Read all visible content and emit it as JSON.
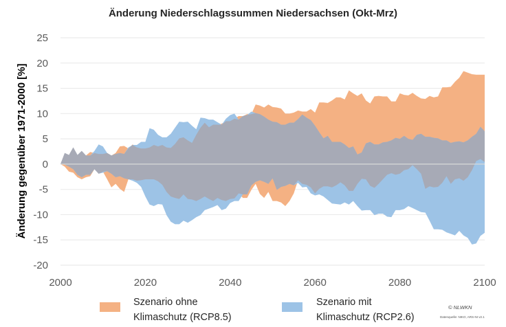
{
  "chart_data": {
    "type": "area",
    "title": "Änderung Niederschlagssummen Niedersachsen (Okt-Mrz)",
    "xlabel": "",
    "ylabel": "Änderung gegenüber 1971-2000 [%]",
    "xlim": [
      2000,
      2100
    ],
    "ylim": [
      -20,
      25
    ],
    "xticks": [
      "2000",
      "2020",
      "2040",
      "2060",
      "2080",
      "2100"
    ],
    "yticks": [
      "25",
      "20",
      "15",
      "10",
      "5",
      "0",
      "-5",
      "-10",
      "-15",
      "-20"
    ],
    "grid": true,
    "legend_position": "bottom",
    "x_start": 2000,
    "x_step": 1,
    "series": [
      {
        "name": "Szenario ohne Klimaschutz (RCP8.5)",
        "color": "#F4B183",
        "upper": [
          0,
          2.2,
          1.8,
          3.3,
          1.8,
          2.6,
          1.7,
          2.4,
          2.2,
          2.0,
          2.0,
          2.2,
          1.7,
          2.2,
          3.5,
          3.6,
          3.1,
          3.9,
          3.3,
          3.1,
          3.1,
          3.3,
          3.8,
          3.5,
          3.8,
          3.3,
          3.2,
          4.0,
          5.1,
          5.3,
          4.7,
          4.2,
          5.8,
          7.2,
          8.2,
          7.3,
          7.8,
          7.8,
          8.0,
          8.5,
          8.5,
          9.0,
          9.5,
          9.5,
          9.9,
          9.9,
          11.8,
          11.6,
          11.2,
          11.8,
          11.3,
          11.2,
          11.0,
          10.0,
          10.0,
          10.2,
          10.6,
          10.4,
          10.4,
          10.9,
          10.2,
          12.2,
          12.2,
          12.1,
          12.6,
          13.2,
          13.2,
          12.8,
          14.6,
          14.0,
          13.5,
          14.0,
          12.6,
          12.0,
          13.4,
          13.5,
          13.4,
          13.4,
          12.4,
          12.4,
          14.0,
          13.7,
          13.6,
          14.1,
          13.5,
          13.0,
          12.9,
          13.5,
          13.2,
          13.4,
          15.2,
          15.2,
          15.3,
          16.3,
          17.1,
          18.4,
          18.1,
          17.8,
          17.7,
          17.7,
          17.7
        ],
        "lower": [
          0,
          -0.5,
          -1.5,
          -1.7,
          -2.6,
          -3.0,
          -2.6,
          -2.4,
          -1.0,
          -1.9,
          -1.5,
          -3.0,
          -4.6,
          -3.9,
          -4.9,
          -5.5,
          -3.0,
          -3.0,
          -3.3,
          -3.2,
          -3.0,
          -3.0,
          -3.0,
          -3.4,
          -4.1,
          -5.5,
          -6.4,
          -6.7,
          -6.9,
          -6.0,
          -6.9,
          -7.0,
          -7.3,
          -6.9,
          -6.4,
          -6.9,
          -7.3,
          -6.7,
          -7.1,
          -7.3,
          -6.9,
          -6.8,
          -5.8,
          -6.7,
          -6.7,
          -5.1,
          -3.9,
          -5.9,
          -6.7,
          -5.5,
          -7.3,
          -7.3,
          -7.6,
          -8.3,
          -7.3,
          -5.8,
          -3.2,
          -3.9,
          -4.1,
          -4.6,
          -5.8,
          -4.9,
          -4.4,
          -4.4,
          -4.6,
          -4.2,
          -3.6,
          -4.2,
          -5.3,
          -5.3,
          -3.9,
          -2.9,
          -3.0,
          -4.3,
          -4.7,
          -3.9,
          -3.0,
          -2.1,
          -1.8,
          -2.1,
          -1.9,
          -1.2,
          -1.0,
          -0.2,
          -1.0,
          -1.9,
          -4.9,
          -4.4,
          -4.6,
          -4.5,
          -3.7,
          -2.4,
          -3.9,
          -3.0,
          -2.8,
          -3.3,
          -2.6,
          -1.2,
          0.6,
          1.0,
          0.4
        ]
      },
      {
        "name": "Szenario mit Klimaschutz (RCP2.6)",
        "color": "#9DC3E6",
        "upper": [
          0,
          2.2,
          1.8,
          3.3,
          1.8,
          2.6,
          1.7,
          1.7,
          2.6,
          3.9,
          3.5,
          2.2,
          1.7,
          2.0,
          2.2,
          2.0,
          3.3,
          3.8,
          3.8,
          4.4,
          4.4,
          7.1,
          6.8,
          5.8,
          5.3,
          5.3,
          6.0,
          7.2,
          8.4,
          8.3,
          8.4,
          7.6,
          6.9,
          9.2,
          9.1,
          8.8,
          8.8,
          8.3,
          7.8,
          9.0,
          9.7,
          10.0,
          8.8,
          9.5,
          9.7,
          10.4,
          10.1,
          9.9,
          9.4,
          8.8,
          8.4,
          8.3,
          7.8,
          7.8,
          8.2,
          8.2,
          8.9,
          9.8,
          9.2,
          8.7,
          7.6,
          6.3,
          5.1,
          5.6,
          4.4,
          4.4,
          4.4,
          3.9,
          3.2,
          3.5,
          1.9,
          2.3,
          4.1,
          4.4,
          3.9,
          3.9,
          4.3,
          4.4,
          4.7,
          5.2,
          5.0,
          5.6,
          5.0,
          4.8,
          5.8,
          6.0,
          5.4,
          5.4,
          5.2,
          5.1,
          4.7,
          4.7,
          4.2,
          4.4,
          4.5,
          4.3,
          4.7,
          5.4,
          6.0,
          7.4,
          6.5
        ],
        "lower": [
          0,
          -0.1,
          -0.5,
          -1.0,
          -2.1,
          -2.6,
          -2.1,
          -2.1,
          -1.0,
          -1.9,
          -1.7,
          -1.4,
          -1.9,
          -2.6,
          -2.4,
          -2.8,
          -3.0,
          -3.3,
          -3.7,
          -4.5,
          -6.4,
          -8.0,
          -8.3,
          -7.9,
          -8.0,
          -10.1,
          -11.4,
          -11.9,
          -11.9,
          -11.2,
          -11.6,
          -11.1,
          -10.5,
          -10.1,
          -9.1,
          -8.8,
          -8.5,
          -8.1,
          -9.1,
          -8.8,
          -7.7,
          -7.3,
          -7.3,
          -6.0,
          -6.0,
          -4.2,
          -3.5,
          -3.2,
          -3.5,
          -3.9,
          -2.8,
          -5.1,
          -4.5,
          -4.3,
          -3.9,
          -4.2,
          -3.7,
          -4.6,
          -4.5,
          -5.8,
          -6.2,
          -6.0,
          -6.4,
          -7.1,
          -7.8,
          -7.9,
          -8.0,
          -7.6,
          -8.0,
          -7.3,
          -8.3,
          -9.2,
          -9.1,
          -9.1,
          -10.1,
          -9.8,
          -9.8,
          -10.4,
          -10.5,
          -9.1,
          -9.1,
          -8.9,
          -8.3,
          -8.7,
          -9.1,
          -9.5,
          -9.6,
          -11.2,
          -12.9,
          -12.9,
          -13.0,
          -13.5,
          -13.8,
          -14.1,
          -13.2,
          -14.1,
          -14.6,
          -15.9,
          -15.7,
          -14.2,
          -13.6
        ]
      }
    ],
    "overlap_color": "#A7AAB6"
  },
  "legend": {
    "items": [
      {
        "line1": "Szenario ohne",
        "line2": "Klimaschutz (RCP8.5)"
      },
      {
        "line1": "Szenario mit",
        "line2": "Klimaschutz (RCP2.6)"
      }
    ]
  },
  "footer": {
    "copyright": "© NLWKN",
    "source": "Datenquelle: NIKO, ARS-NI v2.1"
  }
}
